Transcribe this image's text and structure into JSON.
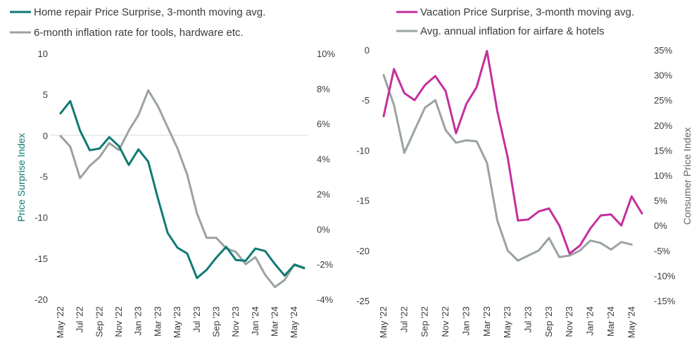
{
  "chart_data": [
    {
      "type": "line",
      "categories": [
        "May '22",
        "Jun '22",
        "Jul '22",
        "Aug '22",
        "Sep '22",
        "Oct '22",
        "Nov '22",
        "Dec '22",
        "Jan '23",
        "Feb '23",
        "Mar '23",
        "Apr '23",
        "May '23",
        "Jun '23",
        "Jul '23",
        "Aug '23",
        "Sep '23",
        "Oct '23",
        "Nov '23",
        "Dec '23",
        "Jan '24",
        "Feb '24",
        "Mar '24",
        "Apr '24",
        "May '24",
        "Jun '24"
      ],
      "x_tick_labels": [
        "May '22",
        "Jul '22",
        "Sep '22",
        "Nov '22",
        "Jan '23",
        "Mar '23",
        "May '23",
        "Jul '23",
        "Sep '23",
        "Nov '23",
        "Jan '24",
        "Mar '24",
        "May '24"
      ],
      "ylabel": "Price Surprise Index",
      "ylabel_right": "",
      "ylim": [
        -20,
        10
      ],
      "yticks": [
        "10",
        "5",
        "0",
        "-5",
        "-10",
        "-15",
        "-20"
      ],
      "ylim_right": [
        -4,
        10
      ],
      "yticks_right": [
        "10%",
        "8%",
        "6%",
        "4%",
        "2%",
        "0%",
        "-2%",
        "-4%"
      ],
      "zero_line": true,
      "series": [
        {
          "name": "Home repair Price Surprise, 3-month moving avg.",
          "axis": "left",
          "color": "#0f7a73",
          "values": [
            2.7,
            4.2,
            0.6,
            -1.8,
            -1.6,
            -0.2,
            -1.3,
            -3.6,
            -1.7,
            -3.2,
            -7.7,
            -11.9,
            -13.7,
            -14.4,
            -17.4,
            -16.4,
            -14.9,
            -13.6,
            -15.2,
            -15.3,
            -13.8,
            -14.1,
            -15.7,
            -17.1,
            -15.8,
            -16.2
          ]
        },
        {
          "name": "6-month inflation rate for tools, hardware etc.",
          "axis": "right",
          "color": "#9aa3a1",
          "values": [
            5.3,
            4.7,
            2.9,
            3.6,
            4.1,
            4.9,
            4.5,
            5.6,
            6.5,
            7.9,
            7.0,
            5.8,
            4.6,
            3.1,
            0.9,
            -0.5,
            -0.5,
            -1.1,
            -1.3,
            -2.0,
            -1.6,
            -2.6,
            -3.3,
            -2.9,
            -2.0,
            -2.2
          ]
        }
      ]
    },
    {
      "type": "line",
      "categories": [
        "May '22",
        "Jun '22",
        "Jul '22",
        "Aug '22",
        "Sep '22",
        "Oct '22",
        "Nov '22",
        "Dec '22",
        "Jan '23",
        "Feb '23",
        "Mar '23",
        "Apr '23",
        "May '23",
        "Jun '23",
        "Jul '23",
        "Aug '23",
        "Sep '23",
        "Oct '23",
        "Nov '23",
        "Dec '23",
        "Jan '24",
        "Feb '24",
        "Mar '24",
        "Apr '24",
        "May '24",
        "Jun '24"
      ],
      "x_tick_labels": [
        "May '22",
        "Jul '22",
        "Sep '22",
        "Nov '22",
        "Jan '23",
        "Mar '23",
        "May '23",
        "Jul '23",
        "Sep '23",
        "Nov '23",
        "Jan '24",
        "Mar '24",
        "May '24"
      ],
      "ylabel": "",
      "ylabel_right": "Consumer Price Index",
      "ylim": [
        -25,
        0
      ],
      "yticks": [
        "0",
        "-5",
        "-10",
        "-15",
        "-20",
        "-25"
      ],
      "ylim_right": [
        -15,
        35
      ],
      "yticks_right": [
        "35%",
        "30%",
        "25%",
        "20%",
        "15%",
        "10%",
        "5%",
        "0%",
        "-5%",
        "-10%",
        "-15%"
      ],
      "zero_line": false,
      "series": [
        {
          "name": "Vacation Price Surprise, 3-month moving avg.",
          "axis": "left",
          "color": "#c42f9c",
          "values": [
            -6.6,
            -1.9,
            -4.3,
            -5.0,
            -3.5,
            -2.6,
            -4.1,
            -8.3,
            -5.4,
            -3.7,
            -0.1,
            -6.1,
            -10.7,
            -17.0,
            -16.9,
            -16.1,
            -15.8,
            -17.5,
            -20.3,
            -19.5,
            -17.8,
            -16.5,
            -16.4,
            -17.5,
            -14.6,
            -16.3
          ]
        },
        {
          "name": "Avg. annual inflation for airfare & hotels",
          "axis": "right",
          "color": "#9aa3a1",
          "values": [
            30.0,
            24.0,
            14.5,
            19.0,
            23.5,
            25.0,
            19.0,
            16.5,
            17.0,
            16.8,
            12.5,
            1.0,
            -5.0,
            -7.0,
            -6.0,
            -5.0,
            -2.5,
            -6.3,
            -6.0,
            -5.0,
            -3.0,
            -3.5,
            -4.8,
            -3.3,
            -3.8,
            null
          ]
        }
      ]
    }
  ]
}
